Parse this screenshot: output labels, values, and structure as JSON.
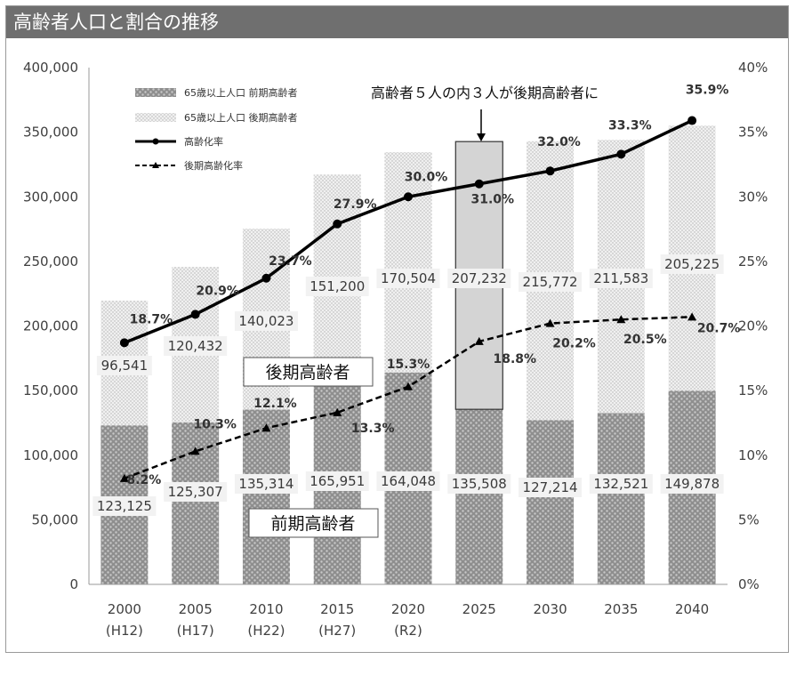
{
  "title": "高齢者人口と割合の推移",
  "annotation": "高齢者５人の内３人が後期高齢者に",
  "box_labels": {
    "late": "後期高齢者",
    "early": "前期高齢者"
  },
  "legend": [
    {
      "label": "65歳以上人口  前期高齢者",
      "icon": "dotted-dark-swatch"
    },
    {
      "label": "65歳以上人口  後期高齢者",
      "icon": "dotted-light-swatch"
    },
    {
      "label": "高齢化率",
      "icon": "solid-line-circle-marker"
    },
    {
      "label": "後期高齢化率",
      "icon": "dashed-line-triangle-marker"
    }
  ],
  "colors": {
    "title_bg": "#6f6f6f",
    "bar_early": "#9a9a9a",
    "bar_late": "#d6d6d6",
    "highlight": "#d4d4d4",
    "line": "#000000"
  },
  "chart_data": {
    "type": "bar",
    "stacked": true,
    "categories": [
      "2000",
      "2005",
      "2010",
      "2015",
      "2020",
      "2025",
      "2030",
      "2035",
      "2040"
    ],
    "category_sublabels": [
      "(H12)",
      "(H17)",
      "(H22)",
      "(H27)",
      "(R2)",
      "",
      "",
      "",
      ""
    ],
    "series": [
      {
        "name": "65歳以上人口  前期高齢者",
        "values": [
          123125,
          125307,
          135314,
          165951,
          164048,
          135508,
          127214,
          132521,
          149878
        ]
      },
      {
        "name": "65歳以上人口  後期高齢者",
        "values": [
          96541,
          120432,
          140023,
          151200,
          170504,
          207232,
          215772,
          211583,
          205225
        ]
      }
    ],
    "bar_value_labels": {
      "early": [
        "123,125",
        "125,307",
        "135,314",
        "165,951",
        "164,048",
        "135,508",
        "127,214",
        "132,521",
        "149,878"
      ],
      "late": [
        "96,541",
        "120,432",
        "140,023",
        "151,200",
        "170,504",
        "207,232",
        "215,772",
        "211,583",
        "205,225"
      ]
    },
    "lines": [
      {
        "name": "高齢化率",
        "axis": "right",
        "style": "solid",
        "marker": "circle",
        "values": [
          18.7,
          20.9,
          23.7,
          27.9,
          30.0,
          31.0,
          32.0,
          33.3,
          35.9
        ],
        "labels": [
          "18.7%",
          "20.9%",
          "23.7%",
          "27.9%",
          "30.0%",
          "31.0%",
          "32.0%",
          "33.3%",
          "35.9%"
        ]
      },
      {
        "name": "後期高齢化率",
        "axis": "right",
        "style": "dashed",
        "marker": "triangle",
        "values": [
          8.2,
          10.3,
          12.1,
          13.3,
          15.3,
          18.8,
          20.2,
          20.5,
          20.7
        ],
        "labels": [
          "8.2%",
          "10.3%",
          "12.1%",
          "13.3%",
          "15.3%",
          "18.8%",
          "20.2%",
          "20.5%",
          "20.7%"
        ]
      }
    ],
    "highlight_category": "2025",
    "ylim": [
      0,
      400000
    ],
    "y_ticks": [
      "0",
      "50,000",
      "100,000",
      "150,000",
      "200,000",
      "250,000",
      "300,000",
      "350,000",
      "400,000"
    ],
    "y2lim": [
      0,
      40
    ],
    "y2_ticks": [
      "0%",
      "5%",
      "10%",
      "15%",
      "20%",
      "25%",
      "30%",
      "35%",
      "40%"
    ],
    "grid": false,
    "legend_position": "top-left"
  }
}
